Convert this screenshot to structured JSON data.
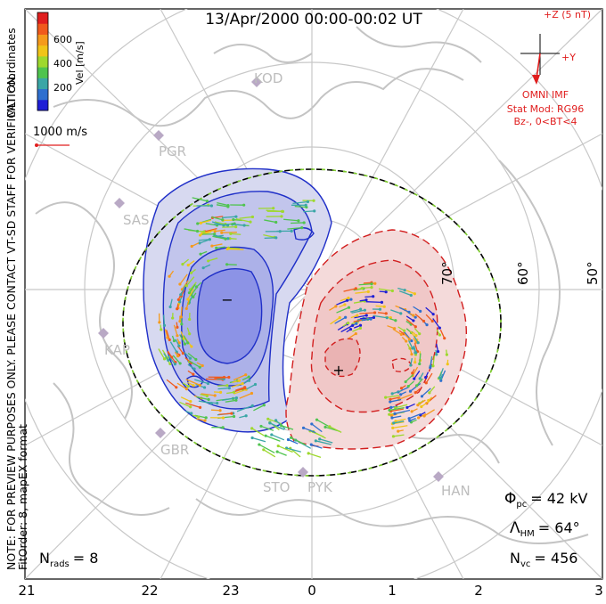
{
  "title": "13/Apr/2000 00:00-00:02 UT",
  "side_note_left": "NOTE: FOR PREVIEW PURPOSES ONLY. PLEASE CONTACT VT-SD STAFF FOR VERIFICATION.",
  "side_note_left2": "FitOrder: 8,  mapEX format",
  "side_note_right": "MLT coordinates",
  "colorbar": {
    "label": "Vel [m/s]",
    "ticks": [
      "600",
      "400",
      "200"
    ],
    "colors": [
      "#1f1fd6",
      "#2e6fcf",
      "#3aa6a6",
      "#4fc44f",
      "#9ed82e",
      "#f0c419",
      "#f59a1c",
      "#f05a1c",
      "#e01e1e"
    ]
  },
  "scale_vector_label": "1000 m/s",
  "imf": {
    "z_label": "+Z (5 nT)",
    "y_label": "+Y",
    "source": "OMNI IMF",
    "model": "Stat Mod: RG96",
    "condition": "Bz-, 0<BT<4",
    "color": "#e01e1e"
  },
  "lat_labels": [
    "70°",
    "60°",
    "50°"
  ],
  "mlt_labels": [
    "21",
    "22",
    "23",
    "0",
    "1",
    "2",
    "3"
  ],
  "stations": [
    "KOD",
    "PGR",
    "SAS",
    "KAP",
    "GBR",
    "STO",
    "PYK",
    "HAN"
  ],
  "stats": {
    "phi_pc": "= 42 kV",
    "lambda_hm": "= 64°",
    "n_vc": "= 456",
    "n_rads": "= 8"
  },
  "symbols": {
    "neg": "−",
    "pos": "+"
  },
  "colors": {
    "neg_fill": "#d7d9f0",
    "neg_line": "#1f2fc8",
    "pos_fill": "#f4dada",
    "pos_line": "#d21f1f",
    "grid": "#c8c8c8",
    "coast": "#c4c4c4"
  }
}
